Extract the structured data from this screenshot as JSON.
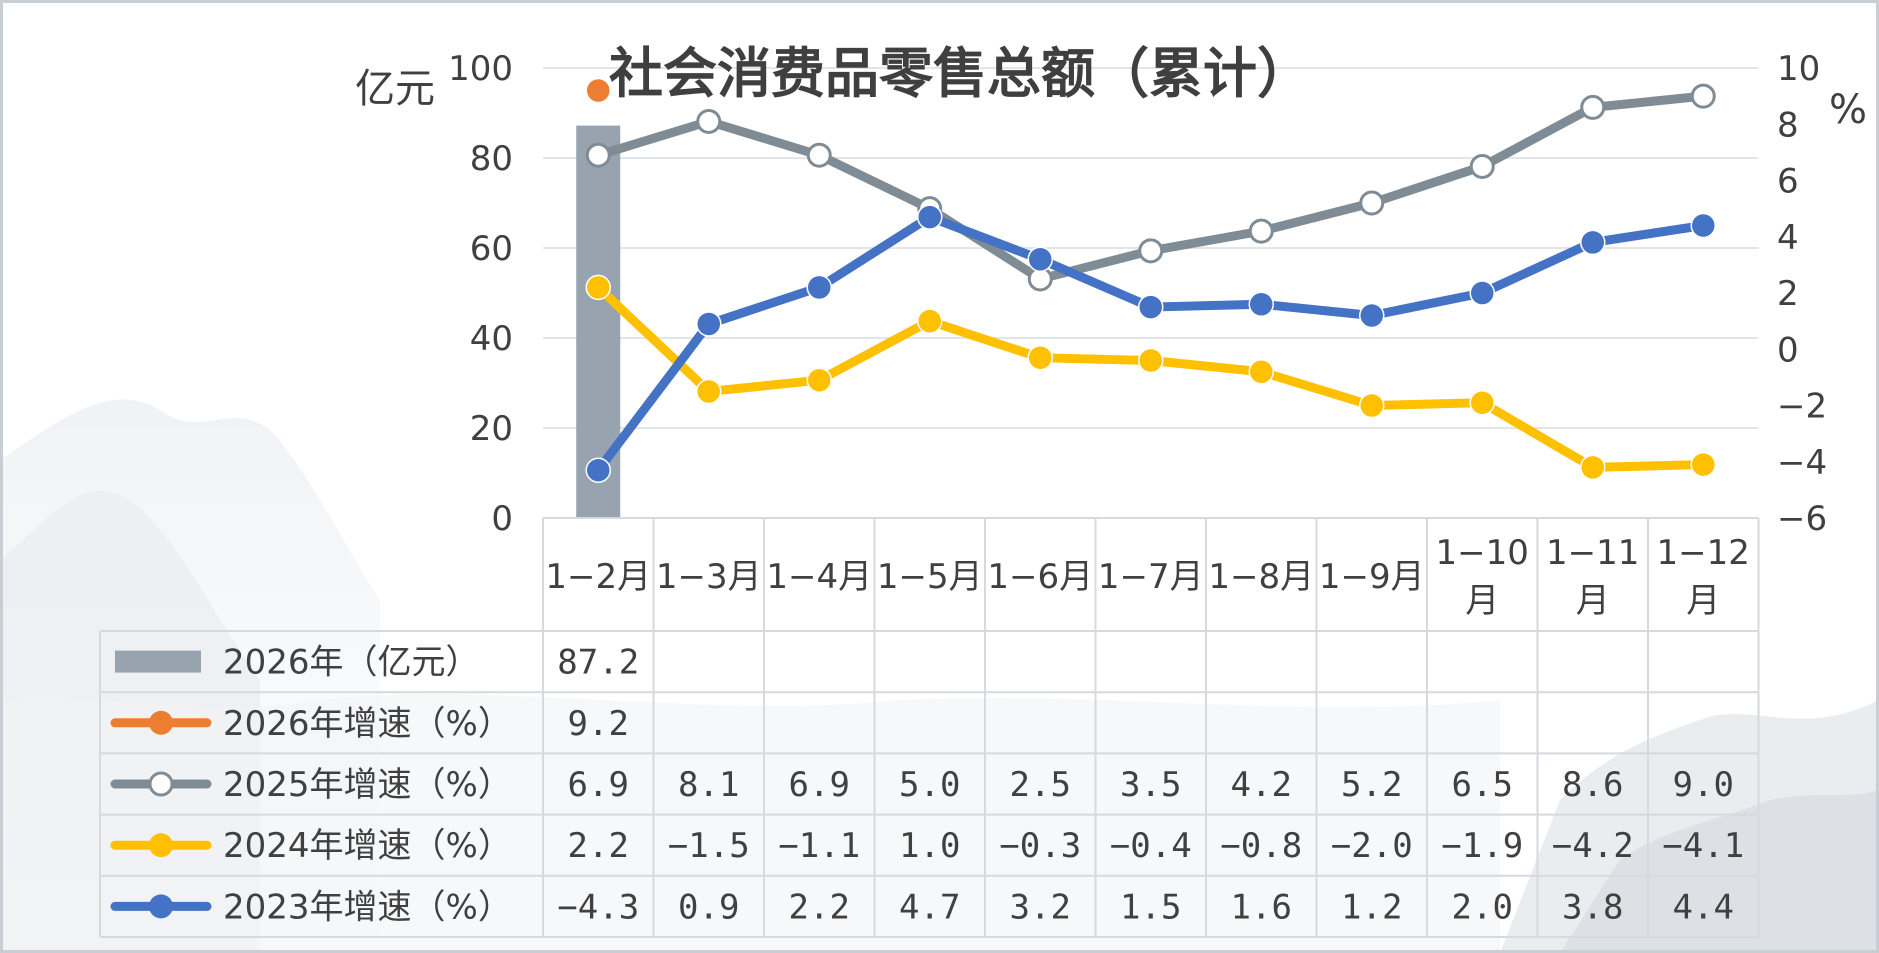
{
  "chart_data": {
    "type": "bar",
    "title": "社会消费品零售总额（累计）",
    "y_left_unit": "亿元",
    "y_right_unit": "%",
    "ylim_left": [
      0,
      100
    ],
    "ylim_right": [
      -6,
      10
    ],
    "left_ticks": [
      "0",
      "20",
      "40",
      "60",
      "80",
      "100"
    ],
    "right_ticks": [
      "−6",
      "−4",
      "−2",
      "0",
      "2",
      "4",
      "6",
      "8",
      "10"
    ],
    "categories": [
      "1−2月",
      "1−3月",
      "1−4月",
      "1−5月",
      "1−6月",
      "1−7月",
      "1−8月",
      "1−9月",
      "1−10月",
      "1−11月",
      "1−12月"
    ],
    "series": [
      {
        "name": "2026年（亿元）",
        "kind": "bar",
        "axis": "left",
        "color": "#97A3AE",
        "values": [
          87.2,
          null,
          null,
          null,
          null,
          null,
          null,
          null,
          null,
          null,
          null
        ],
        "labels": [
          "87.2",
          "",
          "",
          "",
          "",
          "",
          "",
          "",
          "",
          "",
          ""
        ]
      },
      {
        "name": "2026年增速（%）",
        "kind": "line",
        "axis": "right",
        "color": "#ED7D31",
        "marker": "filled",
        "values": [
          9.2,
          null,
          null,
          null,
          null,
          null,
          null,
          null,
          null,
          null,
          null
        ],
        "labels": [
          "9.2",
          "",
          "",
          "",
          "",
          "",
          "",
          "",
          "",
          "",
          ""
        ]
      },
      {
        "name": "2025年增速（%）",
        "kind": "line",
        "axis": "right",
        "color": "#7F8C96",
        "marker": "hollow",
        "values": [
          6.9,
          8.1,
          6.9,
          5.0,
          2.5,
          3.5,
          4.2,
          5.2,
          6.5,
          8.6,
          9.0
        ],
        "labels": [
          "6.9",
          "8.1",
          "6.9",
          "5.0",
          "2.5",
          "3.5",
          "4.2",
          "5.2",
          "6.5",
          "8.6",
          "9.0"
        ]
      },
      {
        "name": "2024年增速（%）",
        "kind": "line",
        "axis": "right",
        "color": "#FFC000",
        "marker": "filled",
        "values": [
          2.2,
          -1.5,
          -1.1,
          1.0,
          -0.3,
          -0.4,
          -0.8,
          -2.0,
          -1.9,
          -4.2,
          -4.1
        ],
        "labels": [
          "2.2",
          "−1.5",
          "−1.1",
          "1.0",
          "−0.3",
          "−0.4",
          "−0.8",
          "−2.0",
          "−1.9",
          "−4.2",
          "−4.1"
        ]
      },
      {
        "name": "2023年增速（%）",
        "kind": "line",
        "axis": "right",
        "color": "#4472C4",
        "marker": "filled",
        "values": [
          -4.3,
          0.9,
          2.2,
          4.7,
          3.2,
          1.5,
          1.6,
          1.2,
          2.0,
          3.8,
          4.4
        ],
        "labels": [
          "−4.3",
          "0.9",
          "2.2",
          "4.7",
          "3.2",
          "1.5",
          "1.6",
          "1.2",
          "2.0",
          "3.8",
          "4.4"
        ]
      }
    ],
    "grid": true,
    "legend": "data-table"
  }
}
